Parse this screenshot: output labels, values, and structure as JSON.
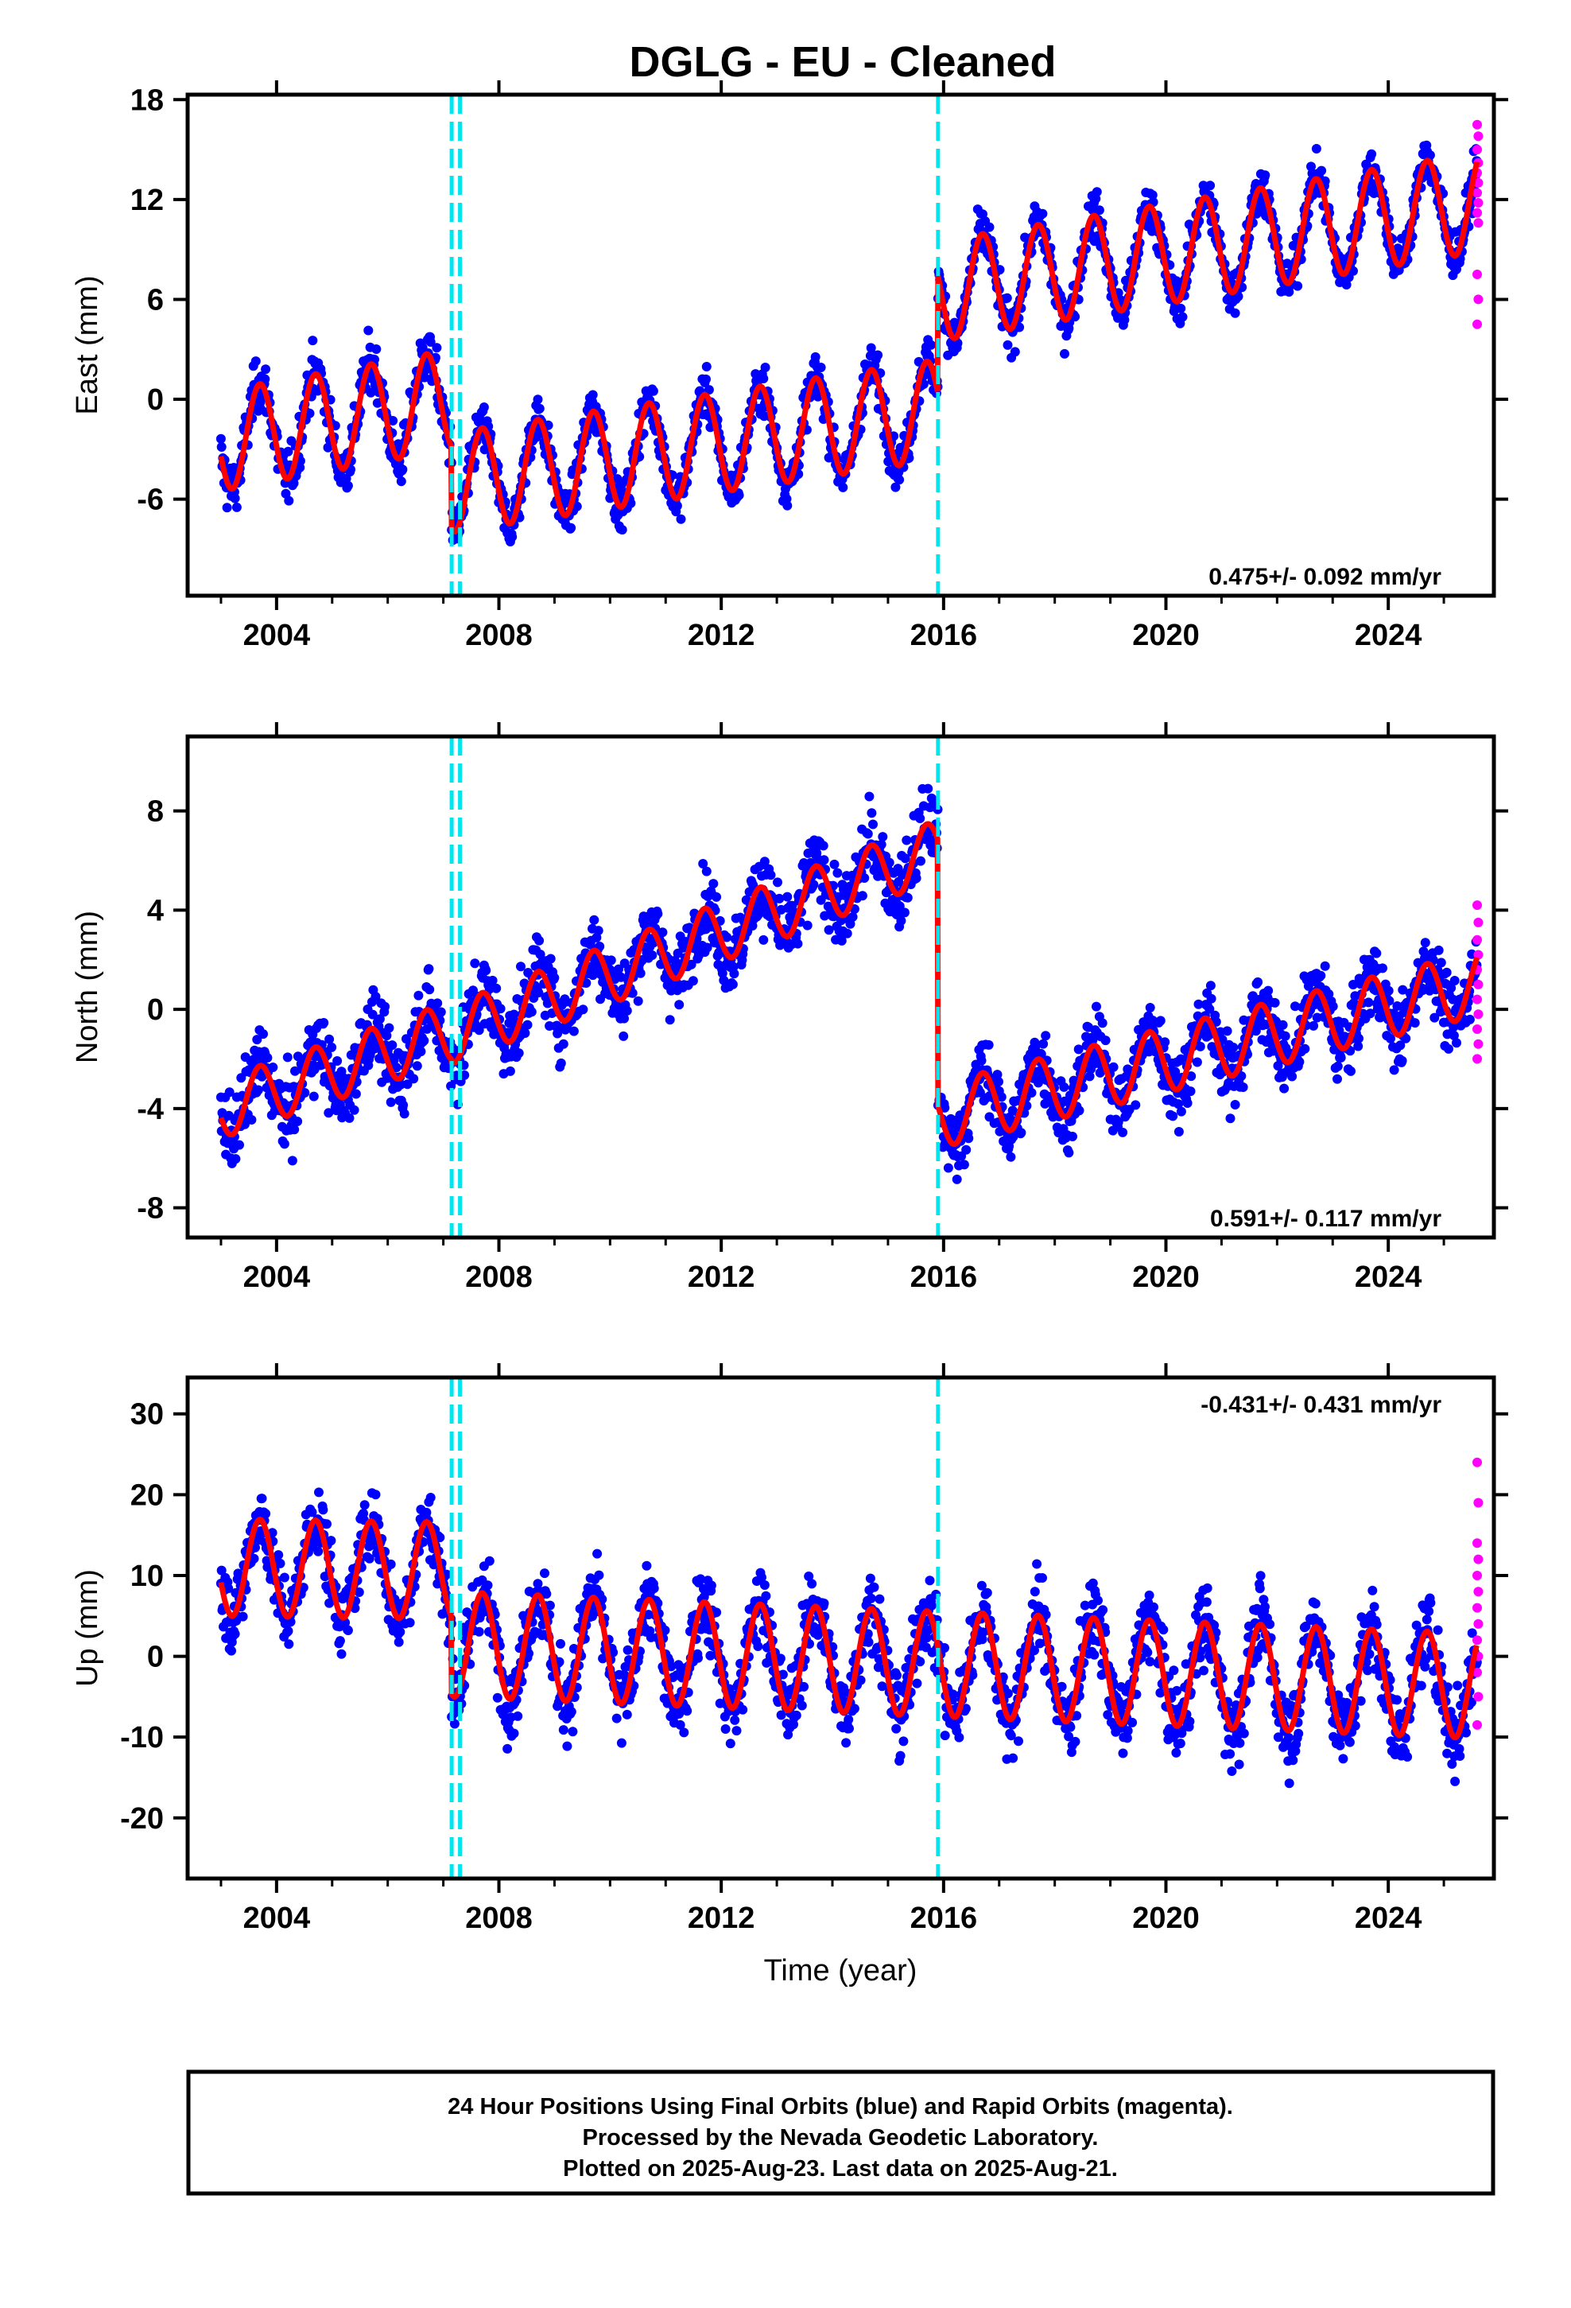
{
  "title": "DGLG  - EU - Cleaned",
  "caption": [
    "24 Hour Positions Using Final Orbits (blue) and Rapid Orbits (magenta).",
    "Processed by the Nevada Geodetic Laboratory.",
    "Plotted on 2025-Aug-23. Last data on 2025-Aug-21."
  ],
  "colors": {
    "final": "#0000ff",
    "rapid": "#ff00ff",
    "model": "#ff0000",
    "offset": "#00e5ee"
  },
  "chart_data": [
    {
      "type": "scatter",
      "component": "East",
      "ylabel": "East (mm)",
      "xlabel": "",
      "rate": "0.475+/- 0.092 mm/yr",
      "rate_position": "bottom-right",
      "xlim": [
        2002.4,
        2025.9
      ],
      "ylim": [
        -11.8,
        18.3
      ],
      "xticks": [
        "2004",
        "2008",
        "2012",
        "2016",
        "2020",
        "2024"
      ],
      "yticks": [
        "-6",
        "0",
        "6",
        "12",
        "18"
      ],
      "offsets": [
        2007.15,
        2007.3,
        2015.9
      ],
      "segments": [
        {
          "x_range": [
            2003.0,
            2007.15
          ],
          "base": -2.5,
          "trend": 0.6,
          "amp": 3.0,
          "phase": 2003.45,
          "noise": 1.4
        },
        {
          "x_range": [
            2007.15,
            2015.9
          ],
          "base": -5.0,
          "trend": 0.5,
          "amp": 3.0,
          "phase": 2003.45,
          "noise": 1.2
        },
        {
          "x_range": [
            2015.9,
            2025.6
          ],
          "base": 6.5,
          "trend": 0.55,
          "amp": 3.0,
          "phase": 2003.45,
          "noise": 1.2
        }
      ],
      "rapid": {
        "x_range": [
          2025.6,
          2025.62
        ],
        "y": [
          16.5,
          15.8,
          15.0,
          14.2,
          13.6,
          13.0,
          12.4,
          11.8,
          11.2,
          10.6,
          7.5,
          6.0,
          4.5
        ]
      }
    },
    {
      "type": "scatter",
      "component": "North",
      "ylabel": "North (mm)",
      "xlabel": "",
      "rate": "0.591+/- 0.117 mm/yr",
      "rate_position": "bottom-right",
      "xlim": [
        2002.4,
        2025.9
      ],
      "ylim": [
        -9.2,
        11.0
      ],
      "xticks": [
        "2004",
        "2008",
        "2012",
        "2016",
        "2020",
        "2024"
      ],
      "yticks": [
        "-8",
        "-4",
        "0",
        "4",
        "8"
      ],
      "offsets": [
        2007.15,
        2007.3,
        2015.9
      ],
      "segments": [
        {
          "x_range": [
            2003.0,
            2007.15
          ],
          "base": -4.0,
          "trend": 0.75,
          "amp": 1.2,
          "phase": 2003.45,
          "noise": 1.3
        },
        {
          "x_range": [
            2007.15,
            2015.9
          ],
          "base": -1.0,
          "trend": 0.85,
          "amp": 1.2,
          "phase": 2003.45,
          "noise": 1.3
        },
        {
          "x_range": [
            2015.9,
            2025.6
          ],
          "base": -4.3,
          "trend": 0.55,
          "amp": 1.3,
          "phase": 2003.45,
          "noise": 1.2
        }
      ],
      "rapid": {
        "x_range": [
          2025.6,
          2025.62
        ],
        "y": [
          4.2,
          3.5,
          2.8,
          2.2,
          1.6,
          1.0,
          0.4,
          -0.2,
          -0.8,
          -1.4,
          -2.0
        ]
      }
    },
    {
      "type": "scatter",
      "component": "Up",
      "ylabel": "Up (mm)",
      "xlabel": "Time (year)",
      "rate": "-0.431+/- 0.431 mm/yr",
      "rate_position": "top-right",
      "xlim": [
        2002.4,
        2025.9
      ],
      "ylim": [
        -27.5,
        34.5
      ],
      "xticks": [
        "2004",
        "2008",
        "2012",
        "2016",
        "2020",
        "2024"
      ],
      "yticks": [
        "-20",
        "-10",
        "0",
        "10",
        "20",
        "30"
      ],
      "offsets": [
        2007.15,
        2007.3,
        2015.9
      ],
      "segments": [
        {
          "x_range": [
            2003.0,
            2007.15
          ],
          "base": 11.0,
          "trend": -0.1,
          "amp": 6.0,
          "phase": 2003.45,
          "noise": 4.0
        },
        {
          "x_range": [
            2007.15,
            2025.6
          ],
          "base": 1.5,
          "trend": -0.28,
          "amp": 6.5,
          "phase": 2003.45,
          "noise": 4.2
        }
      ],
      "rapid": {
        "x_range": [
          2025.6,
          2025.62
        ],
        "y": [
          24.0,
          19.0,
          14.0,
          12.0,
          10.0,
          8.0,
          6.0,
          4.0,
          2.0,
          0.0,
          -2.0,
          -5.0,
          -8.5
        ]
      }
    }
  ]
}
